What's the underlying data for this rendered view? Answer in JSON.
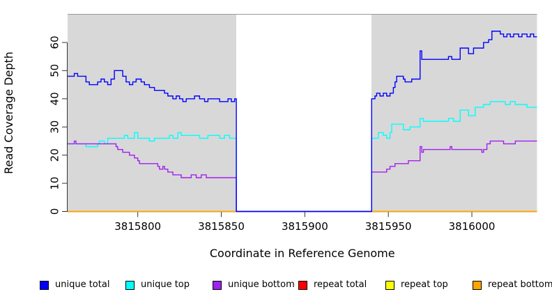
{
  "chart_data": {
    "type": "line",
    "line_style": "step-after",
    "title": "",
    "xlabel": "Coordinate in Reference Genome",
    "ylabel": "Read Coverage Depth",
    "xlim": [
      3815758,
      3816039
    ],
    "ylim": [
      0,
      70
    ],
    "x_ticks": [
      "3815800",
      "3815850",
      "3815900",
      "3815950",
      "3816000"
    ],
    "x_tick_values": [
      3815800,
      3815850,
      3815900,
      3815950,
      3816000
    ],
    "y_ticks": [
      "0",
      "10",
      "20",
      "30",
      "40",
      "50",
      "60"
    ],
    "y_tick_values": [
      0,
      10,
      20,
      30,
      40,
      50,
      60
    ],
    "grid": false,
    "legend_position": "bottom",
    "plot_background": "#ffffff",
    "shaded_regions": [
      {
        "x0": 3815758,
        "x1": 3815859,
        "color": "#d8d8d8"
      },
      {
        "x0": 3815940,
        "x1": 3816039,
        "color": "#d8d8d8"
      }
    ],
    "coverage_gap": {
      "x0": 3815859,
      "x1": 3815940
    },
    "box_border_color": "#999999",
    "axis_color": "#333333",
    "series": [
      {
        "name": "unique total",
        "color": "#0000ff",
        "points": [
          [
            3815758,
            48
          ],
          [
            3815762,
            49
          ],
          [
            3815764,
            48
          ],
          [
            3815769,
            46
          ],
          [
            3815771,
            45
          ],
          [
            3815776,
            46
          ],
          [
            3815778,
            47
          ],
          [
            3815780,
            46
          ],
          [
            3815782,
            45
          ],
          [
            3815784,
            47
          ],
          [
            3815786,
            50
          ],
          [
            3815791,
            48
          ],
          [
            3815793,
            46
          ],
          [
            3815795,
            45
          ],
          [
            3815797,
            46
          ],
          [
            3815799,
            47
          ],
          [
            3815802,
            46
          ],
          [
            3815804,
            45
          ],
          [
            3815807,
            44
          ],
          [
            3815810,
            43
          ],
          [
            3815816,
            42
          ],
          [
            3815818,
            41
          ],
          [
            3815821,
            40
          ],
          [
            3815823,
            41
          ],
          [
            3815825,
            40
          ],
          [
            3815827,
            39
          ],
          [
            3815829,
            40
          ],
          [
            3815834,
            41
          ],
          [
            3815837,
            40
          ],
          [
            3815840,
            39
          ],
          [
            3815842,
            40
          ],
          [
            3815849,
            39
          ],
          [
            3815854,
            40
          ],
          [
            3815856,
            39
          ],
          [
            3815858,
            40
          ],
          [
            3815859,
            0
          ],
          [
            3815940,
            40
          ],
          [
            3815942,
            41
          ],
          [
            3815943,
            42
          ],
          [
            3815945,
            41
          ],
          [
            3815947,
            42
          ],
          [
            3815949,
            41
          ],
          [
            3815951,
            42
          ],
          [
            3815953,
            44
          ],
          [
            3815954,
            46
          ],
          [
            3815955,
            48
          ],
          [
            3815959,
            47
          ],
          [
            3815960,
            46
          ],
          [
            3815964,
            47
          ],
          [
            3815969,
            57
          ],
          [
            3815970,
            54
          ],
          [
            3815986,
            55
          ],
          [
            3815988,
            54
          ],
          [
            3815993,
            58
          ],
          [
            3815998,
            56
          ],
          [
            3816001,
            58
          ],
          [
            3816007,
            60
          ],
          [
            3816010,
            61
          ],
          [
            3816012,
            64
          ],
          [
            3816017,
            63
          ],
          [
            3816019,
            62
          ],
          [
            3816021,
            63
          ],
          [
            3816023,
            62
          ],
          [
            3816025,
            63
          ],
          [
            3816028,
            62
          ],
          [
            3816030,
            63
          ],
          [
            3816033,
            62
          ],
          [
            3816035,
            63
          ],
          [
            3816037,
            62
          ]
        ]
      },
      {
        "name": "unique top",
        "color": "#00ffff",
        "points": [
          [
            3815758,
            24
          ],
          [
            3815769,
            23
          ],
          [
            3815776,
            24
          ],
          [
            3815777,
            25
          ],
          [
            3815780,
            24
          ],
          [
            3815782,
            26
          ],
          [
            3815792,
            27
          ],
          [
            3815794,
            26
          ],
          [
            3815798,
            28
          ],
          [
            3815800,
            26
          ],
          [
            3815807,
            25
          ],
          [
            3815810,
            26
          ],
          [
            3815819,
            27
          ],
          [
            3815821,
            26
          ],
          [
            3815824,
            28
          ],
          [
            3815826,
            27
          ],
          [
            3815837,
            26
          ],
          [
            3815842,
            27
          ],
          [
            3815849,
            26
          ],
          [
            3815852,
            27
          ],
          [
            3815855,
            26
          ],
          [
            3815859,
            0
          ],
          [
            3815940,
            26
          ],
          [
            3815944,
            28
          ],
          [
            3815947,
            27
          ],
          [
            3815949,
            26
          ],
          [
            3815951,
            28
          ],
          [
            3815952,
            31
          ],
          [
            3815959,
            29
          ],
          [
            3815963,
            30
          ],
          [
            3815969,
            33
          ],
          [
            3815971,
            32
          ],
          [
            3815986,
            33
          ],
          [
            3815989,
            32
          ],
          [
            3815993,
            36
          ],
          [
            3815998,
            34
          ],
          [
            3816002,
            37
          ],
          [
            3816007,
            38
          ],
          [
            3816011,
            39
          ],
          [
            3816020,
            38
          ],
          [
            3816023,
            39
          ],
          [
            3816026,
            38
          ],
          [
            3816033,
            37
          ]
        ]
      },
      {
        "name": "unique bottom",
        "color": "#a020f0",
        "points": [
          [
            3815758,
            24
          ],
          [
            3815762,
            25
          ],
          [
            3815763,
            24
          ],
          [
            3815787,
            23
          ],
          [
            3815788,
            22
          ],
          [
            3815791,
            21
          ],
          [
            3815795,
            20
          ],
          [
            3815798,
            19
          ],
          [
            3815800,
            18
          ],
          [
            3815801,
            17
          ],
          [
            3815812,
            16
          ],
          [
            3815813,
            15
          ],
          [
            3815815,
            16
          ],
          [
            3815816,
            15
          ],
          [
            3815818,
            14
          ],
          [
            3815821,
            13
          ],
          [
            3815826,
            12
          ],
          [
            3815832,
            13
          ],
          [
            3815835,
            12
          ],
          [
            3815838,
            13
          ],
          [
            3815841,
            12
          ],
          [
            3815859,
            0
          ],
          [
            3815940,
            14
          ],
          [
            3815949,
            15
          ],
          [
            3815951,
            16
          ],
          [
            3815954,
            17
          ],
          [
            3815962,
            18
          ],
          [
            3815969,
            23
          ],
          [
            3815970,
            21
          ],
          [
            3815971,
            22
          ],
          [
            3815987,
            23
          ],
          [
            3815988,
            22
          ],
          [
            3816006,
            21
          ],
          [
            3816007,
            22
          ],
          [
            3816009,
            24
          ],
          [
            3816011,
            25
          ],
          [
            3816019,
            24
          ],
          [
            3816026,
            25
          ]
        ]
      },
      {
        "name": "repeat total",
        "color": "#ff0000",
        "points": [
          [
            3815758,
            0
          ]
        ]
      },
      {
        "name": "repeat top",
        "color": "#ffff00",
        "points": [
          [
            3815758,
            0
          ]
        ]
      },
      {
        "name": "repeat bottom",
        "color": "#ffa500",
        "points": [
          [
            3815758,
            0
          ]
        ]
      }
    ],
    "draw_order": [
      3,
      4,
      5,
      1,
      2,
      0
    ]
  },
  "legend": {
    "items": [
      {
        "label": "unique total",
        "color": "#0000ff"
      },
      {
        "label": "unique top",
        "color": "#00ffff"
      },
      {
        "label": "unique bottom",
        "color": "#a020f0"
      },
      {
        "label": "repeat total",
        "color": "#ff0000"
      },
      {
        "label": "repeat top",
        "color": "#ffff00"
      },
      {
        "label": "repeat bottom",
        "color": "#ffa500"
      }
    ]
  }
}
